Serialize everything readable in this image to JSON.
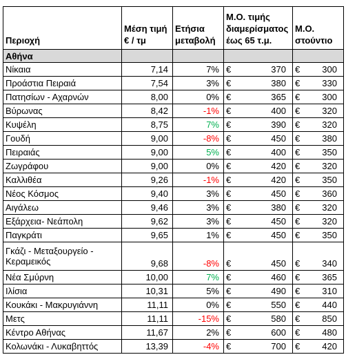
{
  "headers": {
    "area": "Περιοχή",
    "avg_price": "Μέση τιμή € / τμ",
    "annual_change": "Ετήσια μεταβολή",
    "avg_apartment": "Μ.Ο. τιμής διαμερίσματος έως 65 τ.μ.",
    "avg_studio": "Μ.Ο. στούντιο"
  },
  "section": "Αθήνα",
  "currency": "€",
  "rows": [
    {
      "area": "Νίκαια",
      "price": "7,14",
      "change": "7%",
      "change_color": "black",
      "apartment": "370",
      "studio": "300"
    },
    {
      "area": "Προάστια Πειραιά",
      "price": "7,54",
      "change": "3%",
      "change_color": "black",
      "apartment": "380",
      "studio": "330"
    },
    {
      "area": "Πατησίων - Αχαρνών",
      "price": "8,00",
      "change": "0%",
      "change_color": "black",
      "apartment": "365",
      "studio": "300"
    },
    {
      "area": "Βύρωνας",
      "price": "8,42",
      "change": "-1%",
      "change_color": "red",
      "apartment": "400",
      "studio": "320"
    },
    {
      "area": "Κυψέλη",
      "price": "8,75",
      "change": "7%",
      "change_color": "green",
      "apartment": "390",
      "studio": "320"
    },
    {
      "area": "Γουδή",
      "price": "9,00",
      "change": "-8%",
      "change_color": "red",
      "apartment": "450",
      "studio": "380"
    },
    {
      "area": "Πειραιάς",
      "price": "9,00",
      "change": "5%",
      "change_color": "green",
      "apartment": "400",
      "studio": "350"
    },
    {
      "area": "Ζωγράφου",
      "price": "9,00",
      "change": "0%",
      "change_color": "black",
      "apartment": "420",
      "studio": "320"
    },
    {
      "area": "Καλλιθέα",
      "price": "9,26",
      "change": "-1%",
      "change_color": "red",
      "apartment": "420",
      "studio": "350"
    },
    {
      "area": "Νέος Κόσμος",
      "price": "9,40",
      "change": "3%",
      "change_color": "black",
      "apartment": "450",
      "studio": "360"
    },
    {
      "area": "Αιγάλεω",
      "price": "9,46",
      "change": "3%",
      "change_color": "black",
      "apartment": "380",
      "studio": "320"
    },
    {
      "area": "Εξάρχεια- Νεάπολη",
      "price": "9,62",
      "change": "3%",
      "change_color": "black",
      "apartment": "450",
      "studio": "320"
    },
    {
      "area": "Παγκράτι",
      "price": "9,65",
      "change": "1%",
      "change_color": "black",
      "apartment": "450",
      "studio": "350"
    },
    {
      "area": "Γκάζι - Μεταξουργείο - Κεραμεικός",
      "price": "9,68",
      "change": "-8%",
      "change_color": "red",
      "apartment": "450",
      "studio": "340",
      "tall": true
    },
    {
      "area": "Νέα Σμύρνη",
      "price": "10,00",
      "change": "7%",
      "change_color": "green",
      "apartment": "460",
      "studio": "365"
    },
    {
      "area": "Ιλίσια",
      "price": "10,31",
      "change": "5%",
      "change_color": "black",
      "apartment": "490",
      "studio": "310"
    },
    {
      "area": "Κουκάκι - Μακρυγιάννη",
      "price": "11,11",
      "change": "0%",
      "change_color": "black",
      "apartment": "550",
      "studio": "440"
    },
    {
      "area": "Μετς",
      "price": "11,11",
      "change": "-15%",
      "change_color": "red",
      "apartment": "580",
      "studio": "850"
    },
    {
      "area": "Κέντρο Αθήνας",
      "price": "11,67",
      "change": "2%",
      "change_color": "black",
      "apartment": "600",
      "studio": "480"
    },
    {
      "area": "Κολωνάκι - Λυκαβηττός",
      "price": "13,39",
      "change": "-4%",
      "change_color": "red",
      "apartment": "700",
      "studio": "420"
    }
  ]
}
